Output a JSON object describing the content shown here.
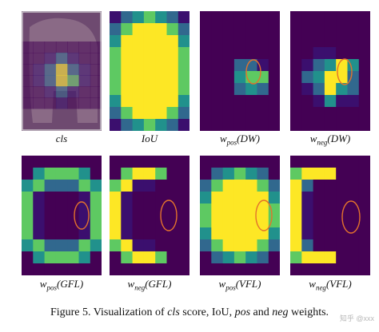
{
  "figure": {
    "caption_prefix": "Figure 5. Visualization of ",
    "caption_cls": "cls",
    "caption_mid1": " score, IoU, ",
    "caption_pos": "pos",
    "caption_mid2": " and ",
    "caption_neg": "neg",
    "caption_suffix": " weights.",
    "watermark": "知乎 @xxx"
  },
  "colors": {
    "background": "#440154",
    "dark_purple": "#3b0f6e",
    "teal": "#21918c",
    "green": "#5ec962",
    "yellow": "#fde725",
    "annotation_ellipse": "#e3722c"
  },
  "panels": [
    {
      "id": "cls",
      "label_main": "cls",
      "label_sub": ""
    },
    {
      "id": "iou",
      "label_main": "IoU",
      "label_sub": ""
    },
    {
      "id": "wpos_dw",
      "label_main": "w",
      "label_sub": "pos",
      "label_arg": "(DW)"
    },
    {
      "id": "wneg_dw",
      "label_main": "w",
      "label_sub": "neg",
      "label_arg": "(DW)"
    },
    {
      "id": "wpos_gfl",
      "label_main": "w",
      "label_sub": "pos",
      "label_arg": "(GFL)"
    },
    {
      "id": "wneg_gfl",
      "label_main": "w",
      "label_sub": "neg",
      "label_arg": "(GFL)"
    },
    {
      "id": "wpos_vfl",
      "label_main": "w",
      "label_sub": "pos",
      "label_arg": "(VFL)"
    },
    {
      "id": "wneg_vfl",
      "label_main": "w",
      "label_sub": "neg",
      "label_arg": "(VFL)"
    }
  ]
}
